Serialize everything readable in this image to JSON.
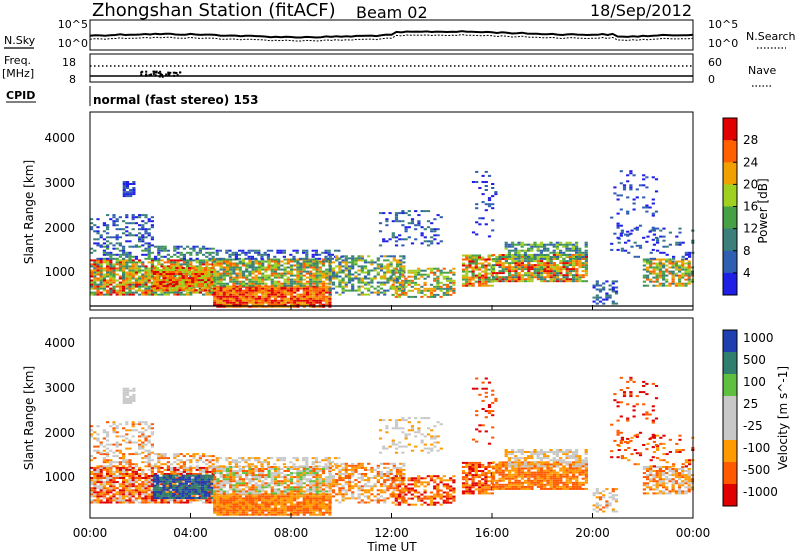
{
  "header": {
    "title": "Zhongshan Station (fitACF)",
    "beam": "Beam 02",
    "date": "18/Sep/2012"
  },
  "side_labels": {
    "nsky": "N.Sky",
    "nsearch": "N.Search",
    "freq": "Freq.",
    "freq_unit": "[MHz]",
    "nave": "Nave",
    "cpid": "CPID"
  },
  "cpid_text": "normal (fast stereo) 153",
  "colors": {
    "power": [
      "#1f1fe6",
      "#2f5fb0",
      "#3a7f7a",
      "#46a046",
      "#a0d020",
      "#f0a000",
      "#ff6000",
      "#e00000"
    ],
    "velocity": [
      "#e00000",
      "#ff5a00",
      "#ff9a00",
      "#c8c8c8",
      "#c8c8c8",
      "#5fc040",
      "#2f7f6f",
      "#1f3fb0"
    ]
  },
  "chart_data": [
    {
      "type": "line",
      "name": "noise-panel",
      "left_ticks": [
        "10^5",
        "10^0"
      ],
      "right_ticks": [
        "10^5",
        "10^0"
      ],
      "left_label": "N.Sky",
      "right_label": "N.Search"
    },
    {
      "type": "line",
      "name": "freq-nave-panel",
      "left_ticks": [
        "18",
        "8"
      ],
      "right_ticks": [
        "60",
        "0"
      ],
      "left_label": "Freq. [MHz]",
      "right_label": "Nave"
    },
    {
      "type": "heatmap",
      "name": "power",
      "ylabel": "Slant Range [km]",
      "yticks": [
        "1000",
        "2000",
        "3000",
        "4000"
      ],
      "ylim": [
        180,
        4600
      ],
      "xlim_hours": [
        0,
        24
      ],
      "colorbar_label": "Power [dB]",
      "colorbar_ticks": [
        "4",
        "8",
        "12",
        "16",
        "20",
        "24",
        "28"
      ],
      "colorbar_range": [
        0,
        32
      ]
    },
    {
      "type": "heatmap",
      "name": "velocity",
      "ylabel": "Slant Range [km]",
      "yticks": [
        "1000",
        "2000",
        "3000",
        "4000"
      ],
      "ylim": [
        180,
        4600
      ],
      "xlim_hours": [
        0,
        24
      ],
      "colorbar_label": "Velocity [m s^-1]",
      "colorbar_ticks": [
        "1000",
        "500",
        "100",
        "25",
        "-25",
        "-100",
        "-500",
        "-1000"
      ],
      "xticks": [
        "00:00",
        "04:00",
        "08:00",
        "12:00",
        "16:00",
        "20:00",
        "00:00"
      ],
      "xlabel": "Time UT"
    }
  ]
}
